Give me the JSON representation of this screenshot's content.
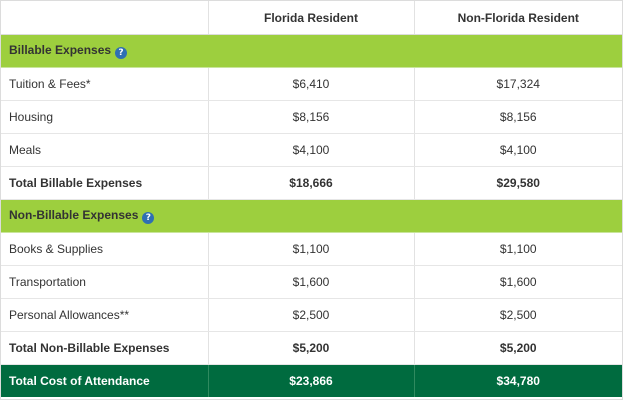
{
  "header": {
    "col1": "",
    "col2": "Florida Resident",
    "col3": "Non-Florida Resident"
  },
  "sections": {
    "billable": {
      "title": "Billable Expenses",
      "help_icon": "?",
      "rows": [
        {
          "label": "Tuition & Fees*",
          "fl": "$6,410",
          "nonfl": "$17,324"
        },
        {
          "label": "Housing",
          "fl": "$8,156",
          "nonfl": "$8,156"
        },
        {
          "label": "Meals",
          "fl": "$4,100",
          "nonfl": "$4,100"
        }
      ],
      "total": {
        "label": "Total Billable Expenses",
        "fl": "$18,666",
        "nonfl": "$29,580"
      }
    },
    "non_billable": {
      "title": "Non-Billable Expenses",
      "help_icon": "?",
      "rows": [
        {
          "label": "Books & Supplies",
          "fl": "$1,100",
          "nonfl": "$1,100"
        },
        {
          "label": "Transportation",
          "fl": "$1,600",
          "nonfl": "$1,600"
        },
        {
          "label": "Personal Allowances**",
          "fl": "$2,500",
          "nonfl": "$2,500"
        }
      ],
      "total": {
        "label": "Total Non-Billable Expenses",
        "fl": "$5,200",
        "nonfl": "$5,200"
      }
    }
  },
  "grand_total": {
    "label": "Total Cost of Attendance",
    "fl": "$23,866",
    "nonfl": "$34,780"
  },
  "colors": {
    "section_band": "#9dcf3e",
    "grand_total_band": "#006b3f",
    "help_icon": "#2f6fb3"
  },
  "icons": {
    "help": "question-circle-icon"
  }
}
